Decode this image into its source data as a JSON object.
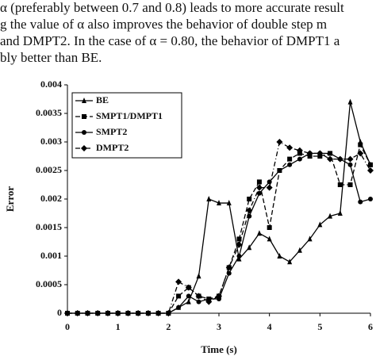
{
  "text_lines": [
    "α (preferably between 0.7 and 0.8) leads to more accurate result",
    "g the value of α also improves the behavior of double step m",
    "and DMPT2. In the case of α = 0.80, the behavior of DMPT1 a",
    "bly better than BE."
  ],
  "chart_data": {
    "type": "line",
    "xlabel": "Time (s)",
    "ylabel": "Error",
    "x": [
      0,
      0.2,
      0.4,
      0.6,
      0.8,
      1,
      1.2,
      1.4,
      1.6,
      1.8,
      2,
      2.2,
      2.4,
      2.6,
      2.8,
      3,
      3.2,
      3.4,
      3.6,
      3.8,
      4,
      4.2,
      4.4,
      4.6,
      4.8,
      5,
      5.2,
      5.4,
      5.6,
      5.8,
      6
    ],
    "xlim": [
      0,
      6
    ],
    "xticks": [
      0,
      1,
      2,
      3,
      4,
      5,
      6
    ],
    "ylim": [
      0,
      0.004
    ],
    "yticks": [
      0,
      0.0005,
      0.001,
      0.0015,
      0.002,
      0.0025,
      0.003,
      0.0035,
      0.004
    ],
    "series": [
      {
        "name": "BE",
        "color": "#000000",
        "style": "solid",
        "marker": "triangle",
        "values": [
          0,
          0,
          0,
          0,
          0,
          0,
          0,
          0,
          0,
          0,
          0,
          0.0001,
          0.0002,
          0.00065,
          0.002,
          0.00193,
          0.00193,
          0.00095,
          0.00115,
          0.0014,
          0.0013,
          0.001,
          0.0009,
          0.0011,
          0.0013,
          0.00155,
          0.0017,
          0.00175,
          0.0037,
          0.003,
          0.0026
        ]
      },
      {
        "name": "SMPT1/DMPT1",
        "color": "#000000",
        "style": "dash",
        "marker": "square",
        "values": [
          0,
          0,
          0,
          0,
          0,
          0,
          0,
          0,
          0,
          0,
          0,
          0.0003,
          0.00045,
          0.0003,
          0.00025,
          0.0003,
          0.0008,
          0.0013,
          0.002,
          0.0023,
          0.0015,
          0.0025,
          0.0027,
          0.0028,
          0.00275,
          0.00275,
          0.0028,
          0.00225,
          0.00225,
          0.00295,
          0.0026
        ]
      },
      {
        "name": "SMPT2",
        "color": "#000000",
        "style": "solid",
        "marker": "circle",
        "values": [
          0,
          0,
          0,
          0,
          0,
          0,
          0,
          0,
          0,
          0,
          0,
          0.0001,
          0.0003,
          0.0002,
          0.00025,
          0.00025,
          0.0007,
          0.001,
          0.0017,
          0.0021,
          0.0023,
          0.0025,
          0.0026,
          0.0027,
          0.0028,
          0.0028,
          0.0028,
          0.0027,
          0.0026,
          0.00195,
          0.002
        ]
      },
      {
        "name": "DMPT2",
        "color": "#000000",
        "style": "dashdot",
        "marker": "diamond",
        "values": [
          0,
          0,
          0,
          0,
          0,
          0,
          0,
          0,
          0,
          0,
          0,
          0.00055,
          0.00045,
          0.0003,
          0.0002,
          0.0003,
          0.0008,
          0.0012,
          0.0018,
          0.0022,
          0.0022,
          0.003,
          0.0029,
          0.00285,
          0.0028,
          0.0028,
          0.0027,
          0.0027,
          0.0027,
          0.0028,
          0.0025
        ]
      }
    ],
    "legend": "upper-left"
  }
}
